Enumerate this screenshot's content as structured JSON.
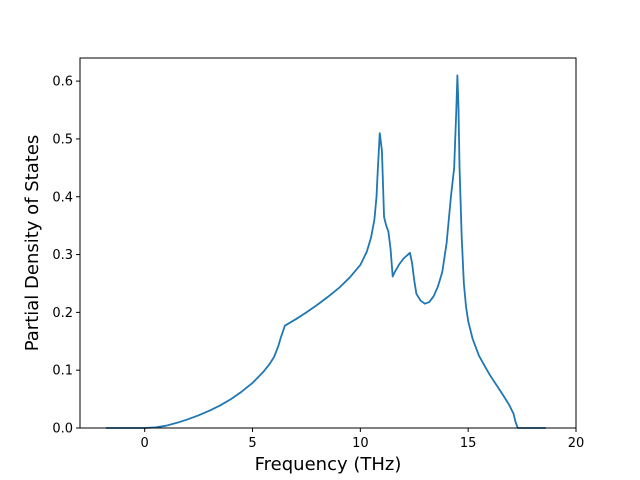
{
  "chart_data": {
    "type": "line",
    "title": "",
    "xlabel": "Frequency (THz)",
    "ylabel": "Partial Density of States",
    "xlim": [
      -3,
      20.0
    ],
    "ylim": [
      0.0,
      0.64
    ],
    "xticks": [
      0,
      5,
      10,
      15,
      20
    ],
    "xtick_labels": [
      "0",
      "5",
      "10",
      "15",
      "20"
    ],
    "yticks": [
      0.0,
      0.1,
      0.2,
      0.3,
      0.4,
      0.5,
      0.6
    ],
    "ytick_labels": [
      "0.0",
      "0.1",
      "0.2",
      "0.3",
      "0.4",
      "0.5",
      "0.6"
    ],
    "grid": false,
    "legend": "none",
    "series": [
      {
        "color": "#1f77b4",
        "x": [
          -1.8,
          -1.0,
          0.0,
          0.5,
          1.0,
          1.5,
          2.0,
          2.5,
          3.0,
          3.5,
          4.0,
          4.5,
          5.0,
          5.5,
          5.8,
          6.0,
          6.2,
          6.3,
          6.5,
          7.0,
          7.5,
          8.0,
          8.5,
          9.0,
          9.5,
          10.0,
          10.3,
          10.5,
          10.65,
          10.75,
          10.8,
          10.9,
          11.0,
          11.1,
          11.2,
          11.3,
          11.4,
          11.5,
          11.6,
          11.8,
          12.0,
          12.3,
          12.4,
          12.5,
          12.6,
          12.8,
          13.0,
          13.2,
          13.4,
          13.6,
          13.8,
          14.0,
          14.2,
          14.35,
          14.45,
          14.5,
          14.55,
          14.6,
          14.7,
          14.8,
          14.9,
          15.0,
          15.2,
          15.5,
          15.8,
          16.0,
          16.3,
          16.6,
          16.9,
          17.1,
          17.2,
          17.3,
          17.5,
          18.0,
          18.6
        ],
        "y": [
          0.0,
          0.0,
          0.0,
          0.001,
          0.004,
          0.009,
          0.015,
          0.022,
          0.03,
          0.039,
          0.05,
          0.063,
          0.078,
          0.097,
          0.111,
          0.123,
          0.142,
          0.155,
          0.177,
          0.188,
          0.2,
          0.213,
          0.227,
          0.242,
          0.26,
          0.282,
          0.305,
          0.33,
          0.36,
          0.4,
          0.44,
          0.51,
          0.48,
          0.365,
          0.35,
          0.34,
          0.31,
          0.262,
          0.27,
          0.283,
          0.293,
          0.303,
          0.285,
          0.255,
          0.232,
          0.22,
          0.215,
          0.218,
          0.228,
          0.245,
          0.27,
          0.32,
          0.4,
          0.45,
          0.55,
          0.61,
          0.555,
          0.45,
          0.33,
          0.25,
          0.21,
          0.185,
          0.155,
          0.125,
          0.105,
          0.092,
          0.075,
          0.058,
          0.04,
          0.025,
          0.01,
          0.0,
          0.0,
          0.0,
          0.0
        ]
      }
    ]
  }
}
